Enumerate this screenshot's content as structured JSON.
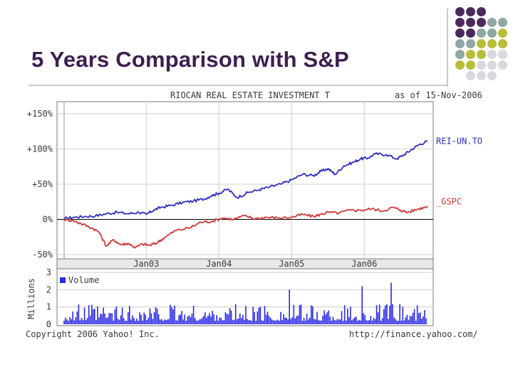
{
  "slide": {
    "title": "5 Years Comparison with S&P"
  },
  "decor": {
    "dot_colors": [
      "#4a2a5c",
      "#8fa7a5",
      "#b8bd3a",
      "#d8d8e0"
    ],
    "dot_pattern": [
      [
        0,
        0,
        0,
        -1,
        -1
      ],
      [
        0,
        0,
        0,
        1,
        1
      ],
      [
        0,
        0,
        1,
        1,
        2
      ],
      [
        1,
        1,
        2,
        2,
        2
      ],
      [
        1,
        2,
        2,
        3,
        3
      ],
      [
        2,
        2,
        3,
        3,
        3
      ],
      [
        -1,
        3,
        3,
        3,
        -1
      ]
    ]
  },
  "chart_header": {
    "title": "RIOCAN REAL ESTATE INVESTMENT T",
    "as_of": "as of 15-Nov-2006",
    "footer_left": "Copyright 2006 Yahoo! Inc.",
    "footer_right": "http://finance.yahoo.com/",
    "volume_axis_label": "Millions",
    "volume_legend": "Volume"
  },
  "chart_data": {
    "type": "line",
    "x_ticks": [
      "Jan03",
      "Jan04",
      "Jan05",
      "Jan06"
    ],
    "xlim": [
      2001.87,
      2006.87
    ],
    "y_ticks": [
      "+150%",
      "+100%",
      "+50%",
      "0%",
      "-50%"
    ],
    "y_tick_values": [
      150,
      100,
      50,
      0,
      -50
    ],
    "ylim": [
      -50,
      160
    ],
    "grid": true,
    "series": [
      {
        "name": "REI-UN.TO",
        "color": "#2f2fbf",
        "x": [
          2001.87,
          2002.0,
          2002.15,
          2002.3,
          2002.45,
          2002.6,
          2002.75,
          2002.9,
          2003.0,
          2003.1,
          2003.2,
          2003.35,
          2003.5,
          2003.65,
          2003.8,
          2003.9,
          2004.0,
          2004.12,
          2004.25,
          2004.4,
          2004.55,
          2004.7,
          2004.85,
          2005.0,
          2005.15,
          2005.3,
          2005.4,
          2005.5,
          2005.6,
          2005.72,
          2005.85,
          2005.95,
          2006.05,
          2006.15,
          2006.3,
          2006.45,
          2006.55,
          2006.65,
          2006.75,
          2006.87
        ],
        "values": [
          1,
          3,
          4,
          5,
          8,
          10,
          8,
          10,
          7,
          13,
          17,
          20,
          24,
          26,
          29,
          34,
          37,
          43,
          31,
          38,
          42,
          46,
          50,
          56,
          64,
          62,
          68,
          72,
          64,
          76,
          81,
          86,
          87,
          93,
          92,
          86,
          92,
          99,
          106,
          111
        ]
      },
      {
        "name": "_GSPC",
        "color": "#d23a3a",
        "x": [
          2001.87,
          2002.0,
          2002.1,
          2002.25,
          2002.35,
          2002.45,
          2002.55,
          2002.65,
          2002.75,
          2002.85,
          2002.95,
          2003.05,
          2003.15,
          2003.25,
          2003.4,
          2003.6,
          2003.75,
          2003.9,
          2004.05,
          2004.2,
          2004.35,
          2004.5,
          2004.65,
          2004.8,
          2005.0,
          2005.15,
          2005.3,
          2005.4,
          2005.5,
          2005.65,
          2005.8,
          2005.95,
          2006.1,
          2006.25,
          2006.4,
          2006.5,
          2006.6,
          2006.75,
          2006.87
        ],
        "values": [
          0,
          -2,
          -6,
          -12,
          -18,
          -38,
          -29,
          -36,
          -34,
          -40,
          -35,
          -37,
          -33,
          -26,
          -16,
          -12,
          -4,
          -3,
          2,
          0,
          5,
          1,
          3,
          2,
          3,
          7,
          4,
          7,
          10,
          9,
          13,
          13,
          15,
          12,
          17,
          13,
          10,
          15,
          19
        ]
      }
    ],
    "volume": {
      "ylabel": "Millions",
      "y_ticks": [
        "3",
        "2",
        "1",
        "0"
      ],
      "y_tick_values": [
        3,
        2,
        1,
        0
      ],
      "ylim": [
        0,
        3
      ],
      "color": "#2a2ae8",
      "peaks": [
        2.1,
        2.3,
        2.0,
        2.2,
        2.4
      ],
      "typical_range": [
        0.2,
        1.2
      ]
    }
  }
}
